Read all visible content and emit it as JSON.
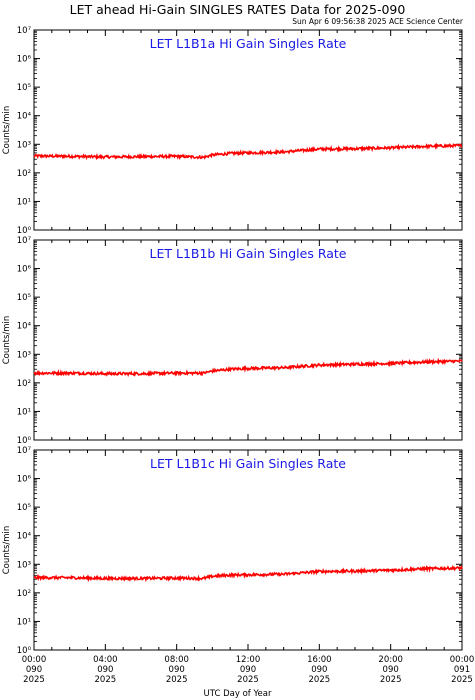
{
  "title": "LET ahead Hi-Gain SINGLES RATES Data for 2025-090",
  "timestamp": "Sun Apr  6 09:56:38 2025 ACE Science Center",
  "xlabel": "UTC Day of Year",
  "ylabel": "Counts/min",
  "colors": {
    "series": "#ff0000",
    "panel_label": "#1a1ae6",
    "axis": "#000000"
  },
  "chart_data": [
    {
      "type": "line",
      "label": "LET L1B1a Hi Gain Singles Rate",
      "x_hours": [
        0,
        2,
        4,
        6,
        8,
        9.5,
        10,
        11,
        12,
        14,
        16,
        18,
        20,
        22,
        24
      ],
      "values": [
        390,
        380,
        360,
        370,
        380,
        350,
        420,
        480,
        500,
        540,
        680,
        700,
        750,
        850,
        900
      ],
      "y_scale": "log",
      "ylim": [
        1,
        10000000
      ]
    },
    {
      "type": "line",
      "label": "LET L1B1b Hi Gain Singles Rate",
      "x_hours": [
        0,
        2,
        4,
        6,
        8,
        9.5,
        10,
        11,
        12,
        14,
        16,
        18,
        20,
        22,
        24
      ],
      "values": [
        220,
        220,
        210,
        210,
        220,
        220,
        260,
        300,
        320,
        340,
        420,
        450,
        480,
        540,
        580
      ],
      "y_scale": "log",
      "ylim": [
        1,
        10000000
      ]
    },
    {
      "type": "line",
      "label": "LET L1B1c Hi Gain Singles Rate",
      "x_hours": [
        0,
        2,
        4,
        6,
        8,
        9.5,
        10,
        11,
        12,
        14,
        16,
        18,
        20,
        22,
        24
      ],
      "values": [
        340,
        340,
        320,
        320,
        330,
        320,
        380,
        420,
        430,
        450,
        560,
        580,
        620,
        700,
        740
      ],
      "y_scale": "log",
      "ylim": [
        1,
        10000000
      ]
    }
  ],
  "y_ticks": [
    "10⁰",
    "10¹",
    "10²",
    "10³",
    "10⁴",
    "10⁵",
    "10⁶",
    "10⁷"
  ],
  "x_ticks": [
    {
      "time": "00:00",
      "doy": "090",
      "year": "2025"
    },
    {
      "time": "04:00",
      "doy": "090",
      "year": "2025"
    },
    {
      "time": "08:00",
      "doy": "090",
      "year": "2025"
    },
    {
      "time": "12:00",
      "doy": "090",
      "year": "2025"
    },
    {
      "time": "16:00",
      "doy": "090",
      "year": "2025"
    },
    {
      "time": "20:00",
      "doy": "090",
      "year": "2025"
    },
    {
      "time": "00:00",
      "doy": "091",
      "year": "2025"
    }
  ]
}
